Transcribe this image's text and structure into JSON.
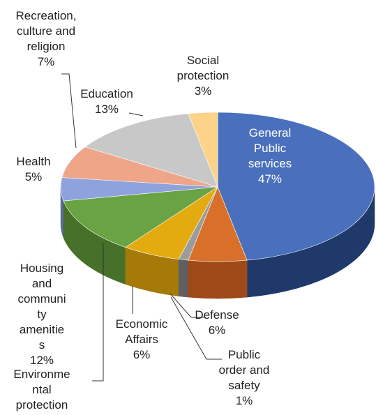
{
  "chart_data": {
    "type": "pie",
    "style": "3d",
    "categories": [
      "General Public services",
      "Defense",
      "Public order and safety",
      "Economic Affairs",
      "Environmental protection",
      "Housing and community amenities",
      "Health",
      "Recreation, culture and religion",
      "Education",
      "Social protection"
    ],
    "values": [
      47,
      6,
      1,
      6,
      0,
      12,
      5,
      7,
      13,
      3
    ],
    "value_labels": [
      "47%",
      "6%",
      "1%",
      "6%",
      "",
      "12%",
      "5%",
      "7%",
      "13%",
      "3%"
    ],
    "label_lines": [
      [
        "General",
        "Public",
        "services",
        "47%"
      ],
      [
        "Defense",
        "6%"
      ],
      [
        "Public",
        "order and",
        "safety",
        "1%"
      ],
      [
        "Economic",
        "Affairs",
        "6%"
      ],
      [
        "Environme",
        "ntal",
        "protection"
      ],
      [
        "Housing",
        "and",
        "communi",
        "ty",
        "amenitie",
        "s",
        "12%"
      ],
      [
        "Health",
        "5%"
      ],
      [
        "Recreation,",
        "culture and",
        "religion",
        "7%"
      ],
      [
        "Education",
        "13%"
      ],
      [
        "Social",
        "protection",
        "3%"
      ]
    ],
    "colors": [
      "#4a6fbd",
      "#d9702a",
      "#9c9c9c",
      "#e4ab11",
      "#7aa0cf",
      "#6aa343",
      "#8ea2dd",
      "#eea588",
      "#c8c8c8",
      "#fcd388"
    ],
    "side_colors": [
      "#1f3a6a",
      "#9e4a18",
      "#5f5f5f",
      "#a57a09",
      "#4a6a94",
      "#477028",
      "#5a6ba0",
      "#b0735c",
      "#8a8a8a",
      "#c59f55"
    ],
    "start_angle_deg": 90,
    "legend": "none"
  }
}
